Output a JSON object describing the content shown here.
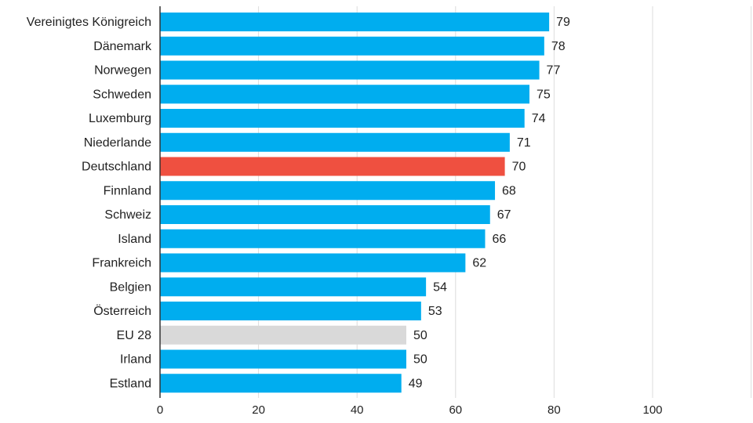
{
  "chart_data": {
    "type": "bar",
    "orientation": "horizontal",
    "categories": [
      "Vereinigtes Königreich",
      "Dänemark",
      "Norwegen",
      "Schweden",
      "Luxemburg",
      "Niederlande",
      "Deutschland",
      "Finnland",
      "Schweiz",
      "Island",
      "Frankreich",
      "Belgien",
      "Österreich",
      "EU 28",
      "Irland",
      "Estland"
    ],
    "values": [
      79,
      78,
      77,
      75,
      74,
      71,
      70,
      68,
      67,
      66,
      62,
      54,
      53,
      50,
      50,
      49
    ],
    "highlight": {
      "Deutschland": "#ef5040",
      "EU 28": "#d9d9d9"
    },
    "default_color": "#00adef",
    "xlim": [
      0,
      120
    ],
    "xticks": [
      0,
      20,
      40,
      60,
      80,
      100
    ],
    "grid": true,
    "title": "",
    "xlabel": "",
    "ylabel": ""
  }
}
